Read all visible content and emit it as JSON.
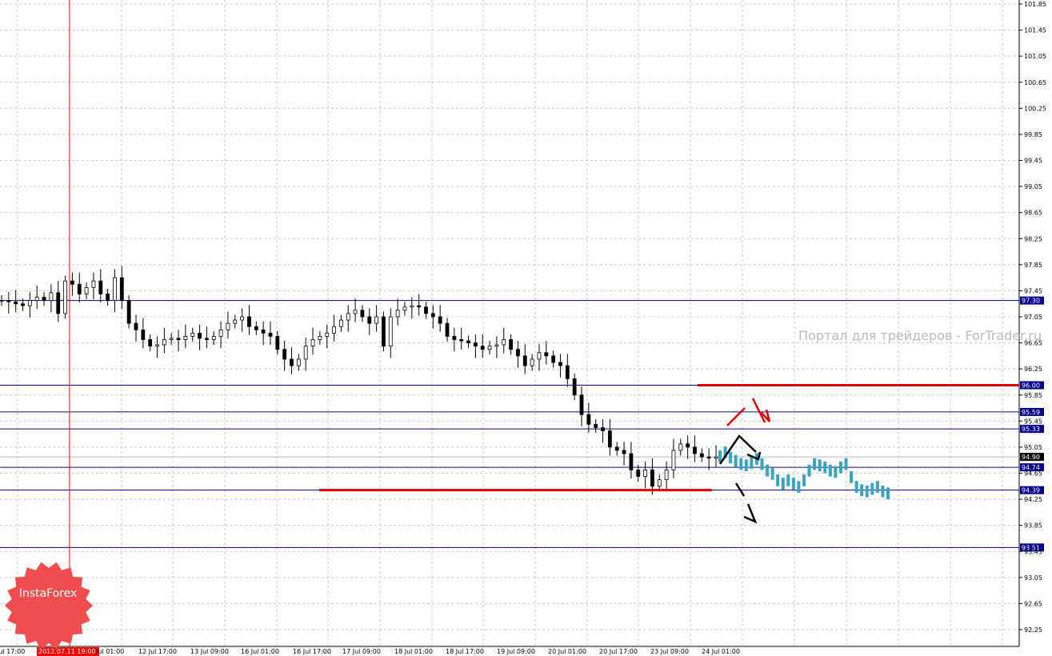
{
  "chart_data": {
    "type": "candlestick",
    "y_range": [
      92.2,
      101.85
    ],
    "y_ticks": [
      "101.85",
      "101.45",
      "101.05",
      "100.65",
      "100.25",
      "99.85",
      "99.45",
      "99.05",
      "98.65",
      "98.25",
      "97.85",
      "97.45",
      "97.05",
      "96.65",
      "96.25",
      "95.85",
      "95.45",
      "95.05",
      "94.65",
      "94.25",
      "93.85",
      "93.45",
      "93.05",
      "92.65",
      "92.25"
    ],
    "x_tick_labels": [
      "Jul 17:00",
      "2012.07.11 19:00",
      "Jul 01:00",
      "12 Jul 17:00",
      "13 Jul 09:00",
      "16 Jul 01:00",
      "16 Jul 17:00",
      "17 Jul 09:00",
      "18 Jul 01:00",
      "18 Jul 17:00",
      "19 Jul 09:00",
      "20 Jul 01:00",
      "20 Jul 17:00",
      "23 Jul 09:00",
      "24 Jul 01:00"
    ],
    "levels": [
      {
        "label": "97.30",
        "value": 97.3
      },
      {
        "label": "96.00",
        "value": 96.0
      },
      {
        "label": "95.59",
        "value": 95.59
      },
      {
        "label": "95.33",
        "value": 95.33
      },
      {
        "label": "94.74",
        "value": 94.74
      },
      {
        "label": "94.39",
        "value": 94.39
      },
      {
        "label": "93.51",
        "value": 93.51
      }
    ],
    "current_price": {
      "label": "94.90",
      "value": 94.9
    },
    "resistance_line": {
      "value": 96.0
    },
    "support_line": {
      "value": 94.39
    },
    "cursor_time_label": "2012.07.11 19:00",
    "price_path": [
      97.3,
      97.28,
      97.25,
      97.22,
      97.3,
      97.35,
      97.3,
      97.42,
      97.1,
      97.6,
      97.55,
      97.4,
      97.5,
      97.6,
      97.4,
      97.3,
      97.65,
      97.3,
      96.95,
      96.85,
      96.7,
      96.6,
      96.62,
      96.7,
      96.72,
      96.7,
      96.75,
      96.8,
      96.72,
      96.7,
      96.75,
      96.85,
      96.95,
      97.0,
      97.05,
      96.9,
      96.85,
      96.8,
      96.75,
      96.55,
      96.4,
      96.3,
      96.4,
      96.6,
      96.7,
      96.75,
      96.8,
      96.9,
      97.0,
      97.1,
      97.15,
      97.05,
      96.95,
      97.05,
      96.6,
      97.05,
      97.15,
      97.2,
      97.22,
      97.2,
      97.1,
      97.05,
      96.95,
      96.75,
      96.7,
      96.68,
      96.65,
      96.6,
      96.55,
      96.6,
      96.62,
      96.7,
      96.55,
      96.45,
      96.3,
      96.4,
      96.5,
      96.45,
      96.35,
      96.3,
      96.1,
      95.85,
      95.55,
      95.4,
      95.35,
      95.3,
      95.05,
      95.0,
      94.95,
      94.7,
      94.6,
      94.7,
      94.45,
      94.55,
      94.7,
      95.0,
      95.1,
      95.05,
      94.95,
      94.9,
      94.88,
      94.9
    ],
    "forecast_path": [
      94.92,
      94.98,
      94.9,
      94.85,
      94.8,
      94.78,
      94.82,
      94.88,
      94.8,
      94.7,
      94.65,
      94.55,
      94.5,
      94.55,
      94.5,
      94.45,
      94.55,
      94.7,
      94.8,
      94.78,
      94.75,
      94.7,
      94.68,
      94.75,
      94.8,
      94.6,
      94.45,
      94.4,
      94.38,
      94.42,
      94.45,
      94.38,
      94.35
    ],
    "colors": {
      "grid": "#c8c8c8",
      "level": "#00008b",
      "sr": "#e00000",
      "forecast": "#3aa3c0",
      "candle": "#000000",
      "cursor": "#ff0000"
    }
  },
  "watermark": "Портал для трейдеров - ForTrader.ru",
  "logo": {
    "text": "InstaForex",
    "color": "#f04e4e"
  }
}
